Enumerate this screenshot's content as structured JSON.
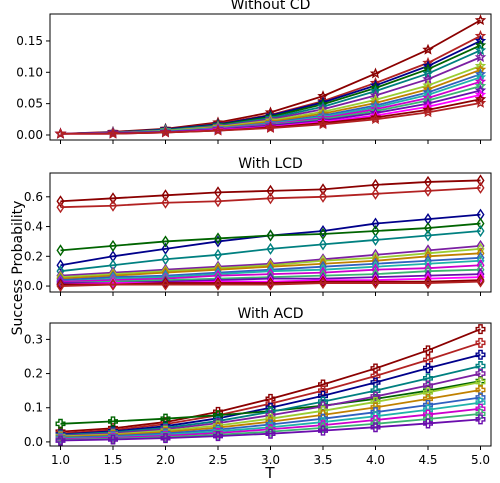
{
  "figure": {
    "xlabel": "T",
    "ylabel": "Success Probability"
  },
  "palette": [
    "#8b0000",
    "#b22222",
    "#00008b",
    "#006400",
    "#008080",
    "#7b1fa2",
    "#9acd32",
    "#c08000",
    "#3060c0",
    "#20b2aa",
    "#cc00cc",
    "#3cb371",
    "#6a0dad",
    "#ff00ff"
  ],
  "chart_data": [
    {
      "type": "line",
      "title": "Without CD",
      "marker": "star",
      "x": [
        1.0,
        1.5,
        2.0,
        2.5,
        3.0,
        3.5,
        4.0,
        4.5,
        5.0
      ],
      "xticks": [
        "1.0",
        "1.5",
        "2.0",
        "2.5",
        "3.0",
        "3.5",
        "4.0",
        "4.5",
        "5.0"
      ],
      "ylim": [
        -0.008,
        0.193
      ],
      "yticks": [
        "0.00",
        "0.05",
        "0.10",
        "0.15"
      ],
      "yticks_values": [
        0.0,
        0.05,
        0.1,
        0.15
      ],
      "series": [
        {
          "values": [
            0.002,
            0.005,
            0.01,
            0.02,
            0.036,
            0.062,
            0.098,
            0.136,
            0.183
          ]
        },
        {
          "values": [
            0.002,
            0.004,
            0.009,
            0.018,
            0.032,
            0.054,
            0.083,
            0.115,
            0.158
          ]
        },
        {
          "values": [
            0.002,
            0.004,
            0.009,
            0.017,
            0.031,
            0.052,
            0.079,
            0.11,
            0.15
          ]
        },
        {
          "values": [
            0.002,
            0.004,
            0.008,
            0.016,
            0.029,
            0.049,
            0.075,
            0.105,
            0.143
          ]
        },
        {
          "values": [
            0.002,
            0.004,
            0.008,
            0.015,
            0.027,
            0.045,
            0.07,
            0.098,
            0.135
          ]
        },
        {
          "values": [
            0.002,
            0.004,
            0.007,
            0.014,
            0.025,
            0.041,
            0.063,
            0.089,
            0.124
          ]
        },
        {
          "values": [
            0.002,
            0.003,
            0.007,
            0.013,
            0.023,
            0.037,
            0.056,
            0.079,
            0.11
          ]
        },
        {
          "values": [
            0.002,
            0.003,
            0.006,
            0.012,
            0.021,
            0.034,
            0.051,
            0.073,
            0.104
          ]
        },
        {
          "values": [
            0.002,
            0.003,
            0.006,
            0.011,
            0.019,
            0.031,
            0.047,
            0.068,
            0.097
          ]
        },
        {
          "values": [
            0.002,
            0.003,
            0.006,
            0.011,
            0.018,
            0.029,
            0.044,
            0.064,
            0.092
          ]
        },
        {
          "values": [
            0.002,
            0.003,
            0.005,
            0.01,
            0.017,
            0.027,
            0.041,
            0.059,
            0.085
          ]
        },
        {
          "values": [
            0.002,
            0.003,
            0.005,
            0.009,
            0.016,
            0.025,
            0.038,
            0.055,
            0.078
          ]
        },
        {
          "values": [
            0.002,
            0.003,
            0.005,
            0.009,
            0.015,
            0.023,
            0.035,
            0.05,
            0.071
          ]
        },
        {
          "values": [
            0.002,
            0.002,
            0.004,
            0.008,
            0.013,
            0.021,
            0.031,
            0.045,
            0.064
          ]
        },
        {
          "values": [
            0.002,
            0.002,
            0.004,
            0.007,
            0.012,
            0.019,
            0.028,
            0.04,
            0.057
          ]
        },
        {
          "values": [
            0.002,
            0.002,
            0.004,
            0.007,
            0.011,
            0.017,
            0.025,
            0.036,
            0.051
          ]
        }
      ]
    },
    {
      "type": "line",
      "title": "With LCD",
      "marker": "diamond",
      "x": [
        1.0,
        1.5,
        2.0,
        2.5,
        3.0,
        3.5,
        4.0,
        4.5,
        5.0
      ],
      "xticks": [
        "1.0",
        "1.5",
        "2.0",
        "2.5",
        "3.0",
        "3.5",
        "4.0",
        "4.5",
        "5.0"
      ],
      "ylim": [
        -0.04,
        0.76
      ],
      "yticks": [
        "0.0",
        "0.2",
        "0.4",
        "0.6"
      ],
      "yticks_values": [
        0.0,
        0.2,
        0.4,
        0.6
      ],
      "series": [
        {
          "values": [
            0.57,
            0.59,
            0.61,
            0.63,
            0.64,
            0.65,
            0.68,
            0.7,
            0.71
          ]
        },
        {
          "values": [
            0.53,
            0.54,
            0.56,
            0.57,
            0.59,
            0.6,
            0.62,
            0.64,
            0.66
          ]
        },
        {
          "values": [
            0.14,
            0.2,
            0.25,
            0.3,
            0.34,
            0.37,
            0.42,
            0.45,
            0.48
          ]
        },
        {
          "values": [
            0.24,
            0.27,
            0.3,
            0.32,
            0.34,
            0.35,
            0.37,
            0.39,
            0.42
          ]
        },
        {
          "values": [
            0.1,
            0.14,
            0.18,
            0.21,
            0.25,
            0.28,
            0.31,
            0.34,
            0.37
          ]
        },
        {
          "values": [
            0.07,
            0.09,
            0.11,
            0.13,
            0.15,
            0.18,
            0.21,
            0.24,
            0.27
          ]
        },
        {
          "values": [
            0.06,
            0.08,
            0.1,
            0.12,
            0.14,
            0.17,
            0.19,
            0.22,
            0.25
          ]
        },
        {
          "values": [
            0.05,
            0.07,
            0.09,
            0.11,
            0.13,
            0.15,
            0.17,
            0.2,
            0.22
          ]
        },
        {
          "values": [
            0.04,
            0.06,
            0.07,
            0.09,
            0.11,
            0.13,
            0.15,
            0.17,
            0.19
          ]
        },
        {
          "values": [
            0.03,
            0.05,
            0.06,
            0.08,
            0.1,
            0.11,
            0.13,
            0.15,
            0.17
          ]
        },
        {
          "values": [
            0.03,
            0.04,
            0.05,
            0.07,
            0.08,
            0.09,
            0.11,
            0.12,
            0.14
          ]
        },
        {
          "values": [
            0.02,
            0.03,
            0.04,
            0.05,
            0.06,
            0.07,
            0.08,
            0.1,
            0.11
          ]
        },
        {
          "values": [
            0.02,
            0.02,
            0.03,
            0.04,
            0.05,
            0.05,
            0.06,
            0.07,
            0.08
          ]
        },
        {
          "values": [
            0.01,
            0.02,
            0.02,
            0.03,
            0.03,
            0.04,
            0.04,
            0.05,
            0.06
          ]
        },
        {
          "values": [
            0.01,
            0.01,
            0.02,
            0.02,
            0.02,
            0.03,
            0.03,
            0.03,
            0.04
          ]
        },
        {
          "values": [
            0.0,
            0.01,
            0.01,
            0.01,
            0.01,
            0.02,
            0.02,
            0.02,
            0.03
          ]
        }
      ]
    },
    {
      "type": "line",
      "title": "With ACD",
      "marker": "plus",
      "x": [
        1.0,
        1.5,
        2.0,
        2.5,
        3.0,
        3.5,
        4.0,
        4.5,
        5.0
      ],
      "xticks": [
        "1.0",
        "1.5",
        "2.0",
        "2.5",
        "3.0",
        "3.5",
        "4.0",
        "4.5",
        "5.0"
      ],
      "ylim": [
        -0.012,
        0.348
      ],
      "yticks": [
        "0.0",
        "0.1",
        "0.2",
        "0.3"
      ],
      "yticks_values": [
        0.0,
        0.1,
        0.2,
        0.3
      ],
      "series": [
        {
          "values": [
            0.03,
            0.04,
            0.058,
            0.088,
            0.126,
            0.168,
            0.215,
            0.268,
            0.33
          ]
        },
        {
          "values": [
            0.025,
            0.035,
            0.052,
            0.078,
            0.112,
            0.15,
            0.193,
            0.24,
            0.29
          ]
        },
        {
          "values": [
            0.022,
            0.031,
            0.046,
            0.069,
            0.1,
            0.135,
            0.174,
            0.216,
            0.255
          ]
        },
        {
          "values": [
            0.053,
            0.06,
            0.068,
            0.078,
            0.09,
            0.106,
            0.126,
            0.15,
            0.178
          ]
        },
        {
          "values": [
            0.02,
            0.028,
            0.041,
            0.061,
            0.088,
            0.118,
            0.15,
            0.186,
            0.222
          ]
        },
        {
          "values": [
            0.018,
            0.025,
            0.037,
            0.055,
            0.078,
            0.104,
            0.133,
            0.165,
            0.2
          ]
        },
        {
          "values": [
            0.016,
            0.022,
            0.033,
            0.048,
            0.068,
            0.091,
            0.117,
            0.145,
            0.175
          ]
        },
        {
          "values": [
            0.014,
            0.02,
            0.029,
            0.042,
            0.059,
            0.079,
            0.101,
            0.126,
            0.152
          ]
        },
        {
          "values": [
            0.012,
            0.017,
            0.025,
            0.036,
            0.051,
            0.068,
            0.087,
            0.108,
            0.13
          ]
        },
        {
          "values": [
            0.01,
            0.014,
            0.021,
            0.031,
            0.043,
            0.058,
            0.075,
            0.094,
            0.115
          ]
        },
        {
          "values": [
            0.008,
            0.012,
            0.018,
            0.026,
            0.037,
            0.049,
            0.064,
            0.08,
            0.097
          ]
        },
        {
          "values": [
            0.006,
            0.009,
            0.014,
            0.021,
            0.03,
            0.041,
            0.053,
            0.067,
            0.082
          ]
        },
        {
          "values": [
            0.004,
            0.007,
            0.011,
            0.017,
            0.024,
            0.033,
            0.043,
            0.054,
            0.066
          ]
        }
      ]
    }
  ]
}
